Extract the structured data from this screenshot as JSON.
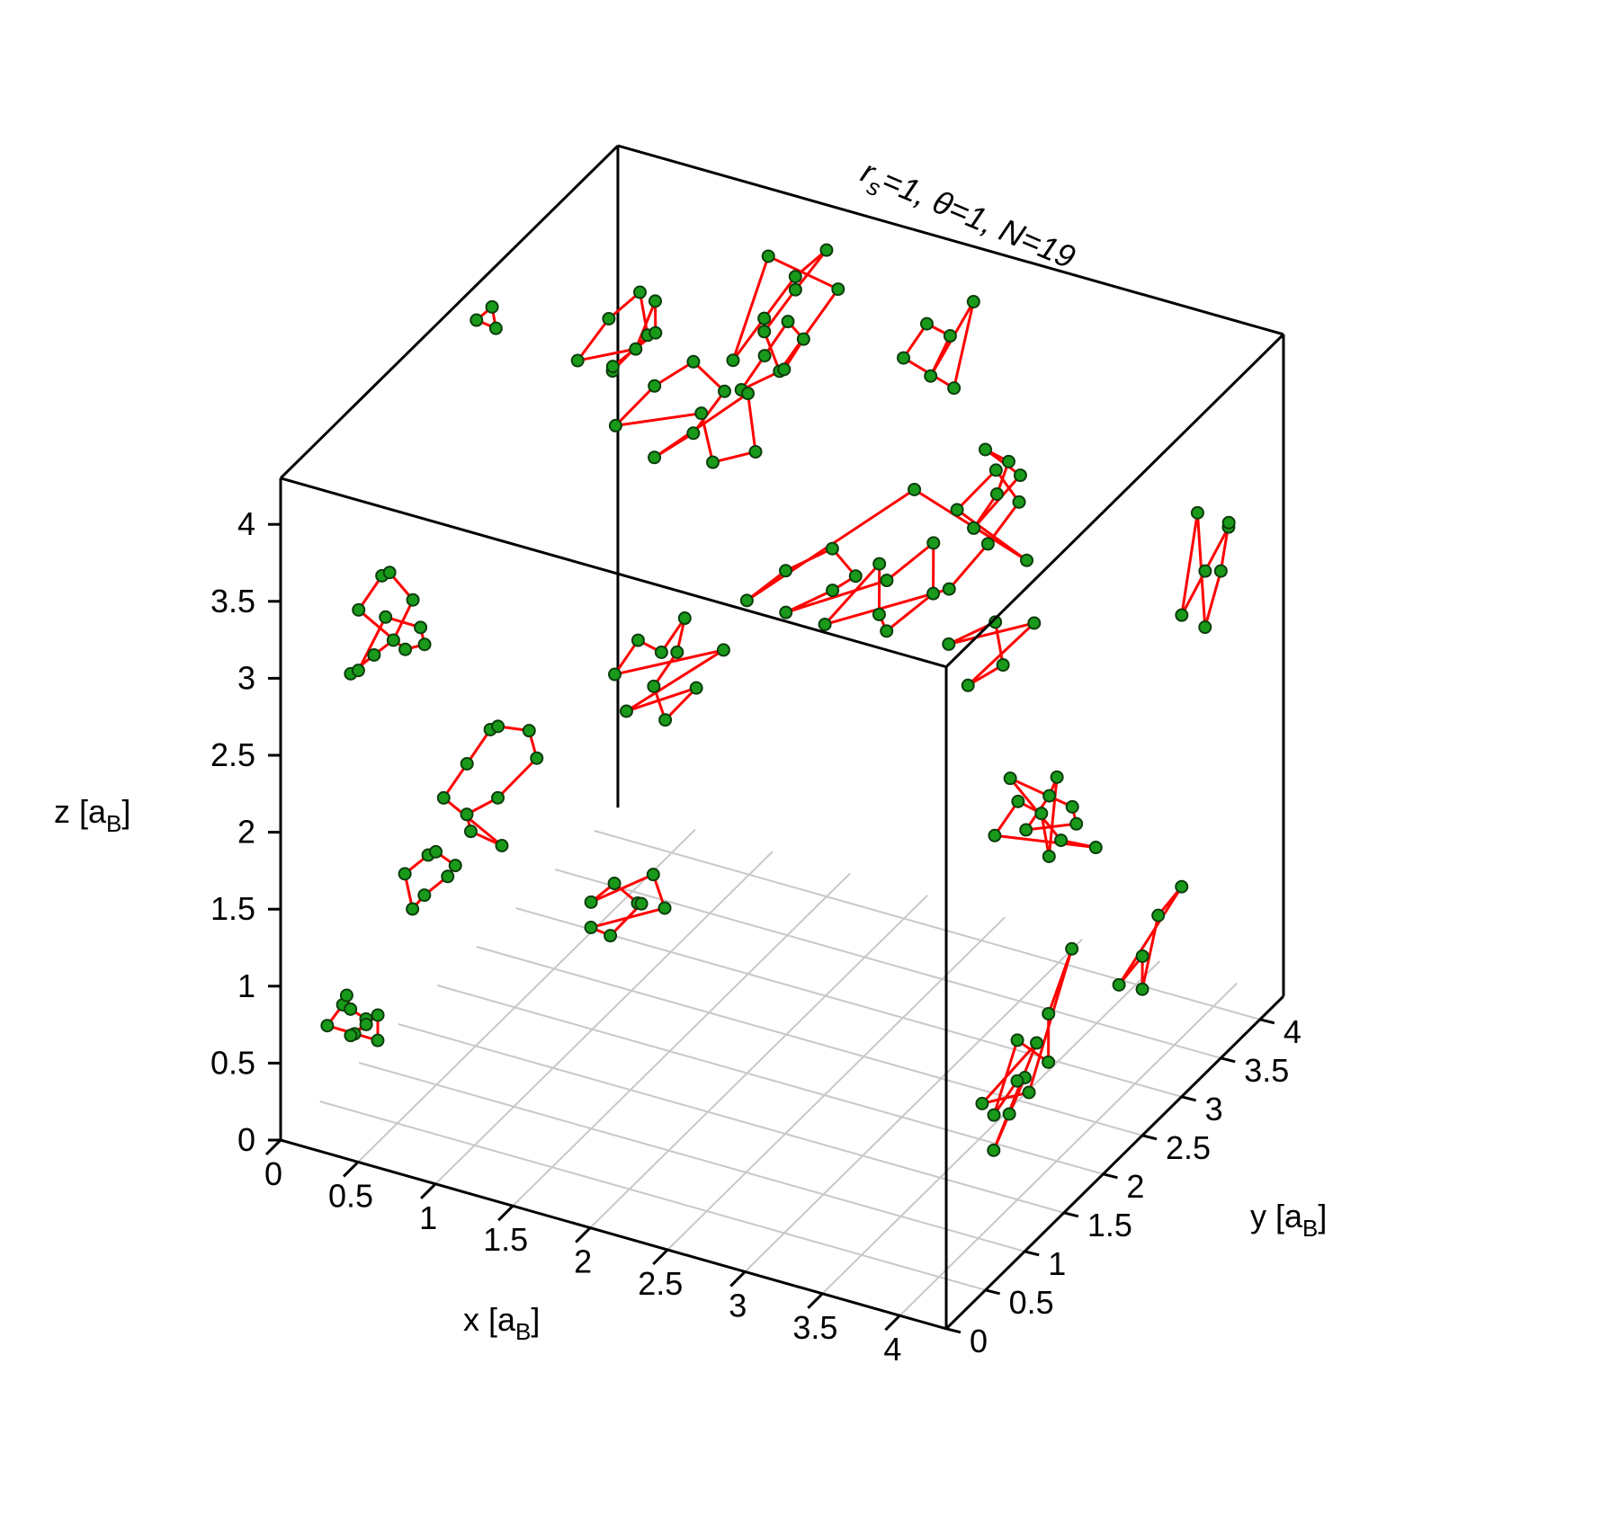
{
  "chart_data": {
    "type": "scatter",
    "subtype": "3d-path-integral-beads",
    "annotation": {
      "rs_symbol": "r",
      "rs_sub": "s",
      "rs_value": "=1, ",
      "theta_symbol": "θ",
      "theta_value": "=1, ",
      "n_text": "N=19"
    },
    "axes": {
      "x": {
        "label": "x [a",
        "label_sub": "B",
        "label_close": "]",
        "range": [
          0,
          4.3
        ],
        "ticks": [
          "0",
          "0.5",
          "1",
          "1.5",
          "2",
          "2.5",
          "3",
          "3.5",
          "4"
        ]
      },
      "y": {
        "label": "y [a",
        "label_sub": "B",
        "label_close": "]",
        "range": [
          0,
          4.3
        ],
        "ticks": [
          "0",
          "0.5",
          "1",
          "1.5",
          "2",
          "2.5",
          "3",
          "3.5",
          "4"
        ]
      },
      "z": {
        "label": "z [a",
        "label_sub": "B",
        "label_close": "]",
        "range": [
          0,
          4.3
        ],
        "ticks": [
          "0",
          "0.5",
          "1",
          "1.5",
          "2",
          "2.5",
          "3",
          "3.5",
          "4"
        ]
      }
    },
    "grid": "floor",
    "legend": "none",
    "colors": {
      "bead_fill": "#1a9a1a",
      "bead_edge": "#0b3d0b",
      "link": "#ff0000",
      "grid": "#c8c8c8",
      "box": "#000000"
    },
    "paths": [
      {
        "id": 1,
        "beads": [
          [
            0.2,
            0.2,
            0.7
          ],
          [
            0.25,
            0.3,
            0.8
          ],
          [
            0.3,
            0.25,
            0.9
          ],
          [
            0.35,
            0.2,
            0.85
          ],
          [
            0.4,
            0.3,
            0.75
          ],
          [
            0.35,
            0.4,
            0.65
          ],
          [
            0.3,
            0.35,
            0.6
          ],
          [
            0.25,
            0.4,
            0.55
          ],
          [
            0.4,
            0.45,
            0.7
          ],
          [
            0.45,
            0.35,
            0.6
          ]
        ]
      },
      {
        "id": 2,
        "beads": [
          [
            0.1,
            2.3,
            4.2
          ],
          [
            0.15,
            2.4,
            4.25
          ],
          [
            0.2,
            2.35,
            4.15
          ]
        ]
      },
      {
        "id": 3,
        "beads": [
          [
            0.2,
            0.6,
            3.2
          ],
          [
            0.3,
            0.7,
            3.4
          ],
          [
            0.4,
            0.6,
            3.5
          ],
          [
            0.5,
            0.7,
            3.3
          ],
          [
            0.45,
            0.55,
            3.1
          ],
          [
            0.35,
            0.5,
            3.0
          ],
          [
            0.25,
            0.4,
            2.9
          ],
          [
            0.35,
            0.3,
            3.0
          ],
          [
            0.45,
            0.45,
            3.3
          ],
          [
            0.6,
            0.6,
            3.2
          ],
          [
            0.55,
            0.75,
            3.0
          ],
          [
            0.4,
            0.8,
            2.9
          ]
        ]
      },
      {
        "id": 4,
        "beads": [
          [
            0.8,
            0.5,
            2.2
          ],
          [
            0.9,
            0.6,
            2.4
          ],
          [
            1.0,
            0.7,
            2.6
          ],
          [
            1.1,
            0.6,
            2.7
          ],
          [
            1.2,
            0.8,
            2.6
          ],
          [
            1.3,
            0.7,
            2.5
          ],
          [
            1.15,
            0.5,
            2.3
          ],
          [
            1.0,
            0.4,
            2.2
          ],
          [
            0.95,
            0.55,
            2.0
          ],
          [
            1.1,
            0.65,
            1.9
          ]
        ]
      },
      {
        "id": 5,
        "beads": [
          [
            0.6,
            0.4,
            1.7
          ],
          [
            0.7,
            0.5,
            1.8
          ],
          [
            0.8,
            0.4,
            1.9
          ],
          [
            0.85,
            0.55,
            1.75
          ],
          [
            0.75,
            0.65,
            1.6
          ],
          [
            0.65,
            0.55,
            1.5
          ],
          [
            0.7,
            0.3,
            1.55
          ]
        ]
      },
      {
        "id": 6,
        "beads": [
          [
            1.6,
            0.8,
            1.6
          ],
          [
            1.7,
            0.9,
            1.7
          ],
          [
            1.8,
            1.0,
            1.55
          ],
          [
            1.9,
            0.85,
            1.65
          ],
          [
            1.75,
            0.75,
            1.45
          ],
          [
            1.65,
            0.7,
            1.5
          ],
          [
            2.0,
            0.95,
            1.6
          ],
          [
            1.85,
            1.1,
            1.7
          ]
        ]
      },
      {
        "id": 7,
        "beads": [
          [
            1.5,
            1.3,
            2.8
          ],
          [
            1.6,
            1.4,
            3.0
          ],
          [
            1.7,
            1.5,
            2.9
          ],
          [
            1.8,
            1.6,
            3.1
          ],
          [
            1.7,
            1.7,
            2.8
          ],
          [
            1.6,
            1.6,
            2.6
          ],
          [
            1.75,
            1.45,
            2.5
          ],
          [
            1.9,
            1.55,
            2.7
          ],
          [
            1.55,
            1.35,
            2.55
          ],
          [
            2.0,
            1.7,
            2.9
          ]
        ]
      },
      {
        "id": 8,
        "beads": [
          [
            2.1,
            1.8,
            3.2
          ],
          [
            2.3,
            1.9,
            3.4
          ],
          [
            2.5,
            2.1,
            3.5
          ],
          [
            2.6,
            2.2,
            3.3
          ],
          [
            2.4,
            2.3,
            3.1
          ],
          [
            2.2,
            2.1,
            3.0
          ],
          [
            2.7,
            2.4,
            3.2
          ],
          [
            2.9,
            2.6,
            3.4
          ],
          [
            3.0,
            2.4,
            3.2
          ],
          [
            2.8,
            2.2,
            3.0
          ],
          [
            2.6,
            2.5,
            2.9
          ],
          [
            2.5,
            2.7,
            3.1
          ],
          [
            2.3,
            2.4,
            2.8
          ],
          [
            2.9,
            2.8,
            3.0
          ],
          [
            3.1,
            2.9,
            3.3
          ],
          [
            3.2,
            3.1,
            3.5
          ],
          [
            3.0,
            3.2,
            3.6
          ],
          [
            2.85,
            3.0,
            3.4
          ],
          [
            3.3,
            3.0,
            3.2
          ],
          [
            2.65,
            2.85,
            3.55
          ]
        ]
      },
      {
        "id": 9,
        "beads": [
          [
            3.1,
            2.4,
            2.9
          ],
          [
            3.3,
            2.6,
            3.0
          ],
          [
            3.4,
            2.5,
            2.8
          ],
          [
            3.25,
            2.35,
            2.7
          ],
          [
            3.5,
            2.7,
            3.0
          ]
        ]
      },
      {
        "id": 10,
        "beads": [
          [
            3.6,
            2.0,
            2.0
          ],
          [
            3.7,
            2.1,
            2.2
          ],
          [
            3.8,
            2.2,
            2.1
          ],
          [
            3.9,
            2.1,
            1.9
          ],
          [
            3.85,
            2.3,
            2.3
          ],
          [
            3.75,
            2.4,
            2.1
          ],
          [
            3.65,
            2.3,
            1.9
          ],
          [
            3.95,
            2.35,
            2.0
          ],
          [
            4.0,
            2.2,
            2.2
          ],
          [
            3.7,
            2.0,
            2.4
          ],
          [
            3.8,
            2.45,
            1.8
          ],
          [
            4.05,
            2.4,
            1.85
          ]
        ]
      },
      {
        "id": 11,
        "beads": [
          [
            4.1,
            1.0,
            0.6
          ],
          [
            4.15,
            1.1,
            0.8
          ],
          [
            4.2,
            1.2,
            1.0
          ],
          [
            4.1,
            1.3,
            0.9
          ],
          [
            4.0,
            1.2,
            0.7
          ],
          [
            4.05,
            1.4,
            1.1
          ],
          [
            4.2,
            1.5,
            0.95
          ],
          [
            4.15,
            1.6,
            1.2
          ],
          [
            4.25,
            1.7,
            1.6
          ],
          [
            4.1,
            1.45,
            0.75
          ],
          [
            4.0,
            1.05,
            0.85
          ],
          [
            4.2,
            1.35,
            1.15
          ]
        ]
      },
      {
        "id": 12,
        "beads": [
          [
            4.2,
            2.4,
            1.0
          ],
          [
            4.25,
            2.6,
            1.1
          ],
          [
            4.3,
            2.5,
            0.95
          ],
          [
            4.2,
            2.9,
            1.2
          ],
          [
            4.25,
            3.1,
            1.3
          ]
        ]
      },
      {
        "id": 13,
        "beads": [
          [
            4.2,
            3.2,
            3.0
          ],
          [
            4.25,
            3.4,
            3.2
          ],
          [
            4.3,
            3.6,
            3.4
          ],
          [
            4.2,
            3.8,
            3.3
          ],
          [
            4.25,
            3.6,
            3.1
          ],
          [
            4.3,
            3.3,
            2.9
          ],
          [
            4.15,
            3.5,
            3.5
          ]
        ]
      },
      {
        "id": 14,
        "beads": [
          [
            0.5,
            2.8,
            3.8
          ],
          [
            0.6,
            3.0,
            4.0
          ],
          [
            0.7,
            3.2,
            4.1
          ],
          [
            0.8,
            3.1,
            3.9
          ],
          [
            0.65,
            2.95,
            3.7
          ],
          [
            0.55,
            3.15,
            3.6
          ],
          [
            0.75,
            3.3,
            3.8
          ],
          [
            0.9,
            3.0,
            4.2
          ],
          [
            0.85,
            2.85,
            3.95
          ]
        ]
      },
      {
        "id": 15,
        "beads": [
          [
            1.2,
            3.4,
            3.7
          ],
          [
            1.3,
            3.6,
            3.9
          ],
          [
            1.4,
            3.8,
            4.1
          ],
          [
            1.5,
            4.0,
            4.2
          ],
          [
            1.35,
            3.9,
            3.95
          ],
          [
            1.25,
            3.7,
            3.75
          ],
          [
            1.45,
            3.5,
            3.65
          ],
          [
            1.6,
            3.95,
            4.0
          ],
          [
            1.2,
            3.85,
            4.15
          ]
        ]
      },
      {
        "id": 16,
        "beads": [
          [
            1.0,
            3.9,
            3.2
          ],
          [
            1.1,
            4.0,
            3.4
          ],
          [
            1.2,
            4.1,
            3.6
          ],
          [
            1.25,
            4.2,
            3.45
          ],
          [
            1.15,
            4.15,
            3.25
          ]
        ]
      },
      {
        "id": 17,
        "beads": [
          [
            1.1,
            2.1,
            3.9
          ],
          [
            1.25,
            2.3,
            4.1
          ],
          [
            1.4,
            2.5,
            4.2
          ],
          [
            1.55,
            2.6,
            4.0
          ],
          [
            1.45,
            2.4,
            3.8
          ],
          [
            1.3,
            2.2,
            3.7
          ],
          [
            1.6,
            2.8,
            3.9
          ],
          [
            1.7,
            2.7,
            3.6
          ],
          [
            1.5,
            2.55,
            3.55
          ],
          [
            1.35,
            2.7,
            3.75
          ]
        ]
      },
      {
        "id": 18,
        "beads": [
          [
            2.2,
            3.6,
            3.9
          ],
          [
            2.3,
            3.7,
            4.1
          ],
          [
            2.4,
            3.8,
            4.0
          ],
          [
            2.35,
            3.65,
            3.8
          ],
          [
            2.5,
            3.9,
            4.2
          ],
          [
            2.45,
            3.75,
            3.7
          ]
        ]
      },
      {
        "id": 19,
        "beads": [
          [
            2.4,
            4.1,
            2.6
          ],
          [
            2.5,
            4.2,
            2.8
          ],
          [
            2.55,
            4.25,
            3.0
          ],
          [
            2.45,
            4.15,
            3.1
          ],
          [
            2.6,
            4.3,
            2.9
          ]
        ]
      }
    ]
  }
}
